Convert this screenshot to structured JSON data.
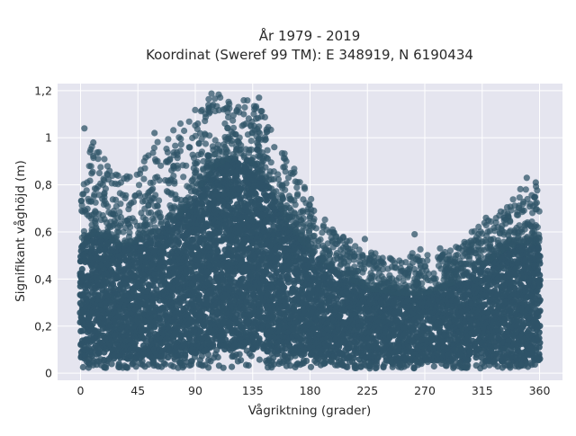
{
  "chart_data": {
    "type": "scatter",
    "title_lines": [
      "År 1979 - 2019",
      "Koordinat (Sweref 99 TM): E 348919, N 6190434"
    ],
    "xlabel": "Vågriktning (grader)",
    "ylabel": "Signifikant våghöjd (m)",
    "xlim": [
      -18,
      378
    ],
    "ylim": [
      -0.03,
      1.23
    ],
    "x_ticks": [
      0,
      45,
      90,
      135,
      180,
      225,
      270,
      315,
      360
    ],
    "x_tick_labels": [
      "0",
      "45",
      "90",
      "135",
      "180",
      "225",
      "270",
      "315",
      "360"
    ],
    "y_ticks": [
      0,
      0.2,
      0.4,
      0.6,
      0.8,
      1,
      1.2
    ],
    "y_tick_labels": [
      "0",
      "0,2",
      "0,4",
      "0,6",
      "0,8",
      "1",
      "1,2"
    ],
    "grid": true,
    "colors": {
      "marker": "#2f5468",
      "plot_background": "#e5e5ef",
      "grid": "#ffffff"
    },
    "envelope": {
      "direction_deg": [
        0,
        10,
        20,
        30,
        45,
        60,
        75,
        90,
        105,
        120,
        135,
        150,
        165,
        180,
        200,
        225,
        250,
        270,
        290,
        315,
        335,
        350,
        360
      ],
      "dense_upper_m": [
        0.55,
        0.6,
        0.58,
        0.55,
        0.56,
        0.6,
        0.66,
        0.76,
        0.88,
        0.92,
        0.9,
        0.78,
        0.62,
        0.52,
        0.44,
        0.36,
        0.34,
        0.34,
        0.38,
        0.46,
        0.54,
        0.56,
        0.56
      ],
      "max_upper_m": [
        0.84,
        0.98,
        0.9,
        0.84,
        0.88,
        0.98,
        1.05,
        1.12,
        1.21,
        1.15,
        1.18,
        1.05,
        0.9,
        0.75,
        0.6,
        0.52,
        0.48,
        0.54,
        0.52,
        0.64,
        0.72,
        0.82,
        0.82
      ],
      "dense_lower_m": [
        0.06,
        0.06,
        0.06,
        0.06,
        0.06,
        0.06,
        0.07,
        0.08,
        0.1,
        0.1,
        0.1,
        0.09,
        0.08,
        0.07,
        0.06,
        0.05,
        0.05,
        0.05,
        0.05,
        0.05,
        0.05,
        0.05,
        0.05
      ],
      "min_m": 0.02
    },
    "sample_points": [
      {
        "x": 3,
        "y": 1.04
      },
      {
        "x": 10,
        "y": 0.98
      },
      {
        "x": 58,
        "y": 1.02
      },
      {
        "x": 92,
        "y": 1.06
      },
      {
        "x": 104,
        "y": 1.14
      },
      {
        "x": 112,
        "y": 1.12
      },
      {
        "x": 128,
        "y": 1.1
      },
      {
        "x": 140,
        "y": 1.17
      },
      {
        "x": 142,
        "y": 1.09
      },
      {
        "x": 152,
        "y": 0.96
      },
      {
        "x": 165,
        "y": 0.85
      },
      {
        "x": 183,
        "y": 0.69
      },
      {
        "x": 200,
        "y": 0.55
      },
      {
        "x": 223,
        "y": 0.57
      },
      {
        "x": 262,
        "y": 0.59
      },
      {
        "x": 282,
        "y": 0.53
      },
      {
        "x": 300,
        "y": 0.54
      },
      {
        "x": 318,
        "y": 0.66
      },
      {
        "x": 332,
        "y": 0.66
      },
      {
        "x": 350,
        "y": 0.83
      },
      {
        "x": 357,
        "y": 0.81
      }
    ]
  }
}
